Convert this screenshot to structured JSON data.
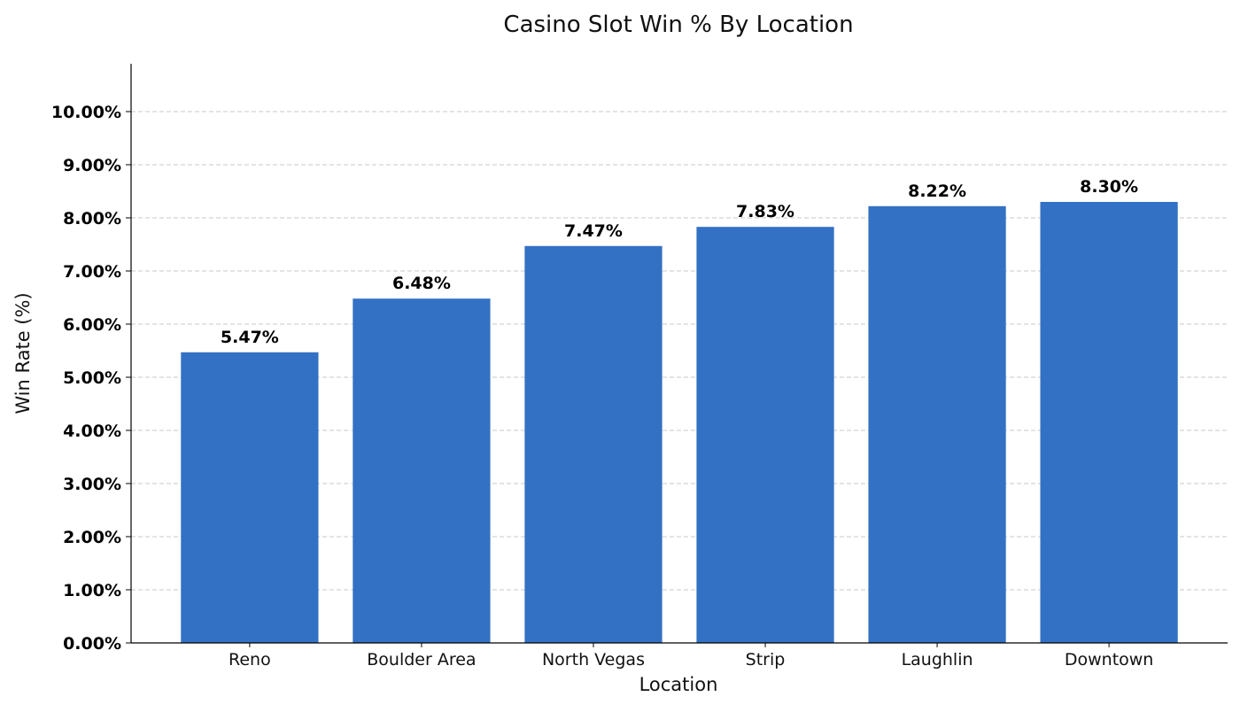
{
  "chart_data": {
    "type": "bar",
    "title": "Casino Slot Win % By Location",
    "xlabel": "Location",
    "ylabel": "Win Rate (%)",
    "categories": [
      "Reno",
      "Boulder Area",
      "North Vegas",
      "Strip",
      "Laughlin",
      "Downtown"
    ],
    "values": [
      5.47,
      6.48,
      7.47,
      7.83,
      8.22,
      8.3
    ],
    "data_labels": [
      "5.47%",
      "6.48%",
      "7.47%",
      "7.83%",
      "8.22%",
      "8.30%"
    ],
    "ylim": [
      0,
      10.9
    ],
    "yticks": [
      0,
      1,
      2,
      3,
      4,
      5,
      6,
      7,
      8,
      9,
      10
    ],
    "ytick_labels": [
      "0.00%",
      "1.00%",
      "2.00%",
      "3.00%",
      "4.00%",
      "5.00%",
      "6.00%",
      "7.00%",
      "8.00%",
      "9.00%",
      "10.00%"
    ],
    "grid": "horizontal dashed",
    "bar_color": "#3371c4",
    "grid_color": "#c8c8c8"
  }
}
